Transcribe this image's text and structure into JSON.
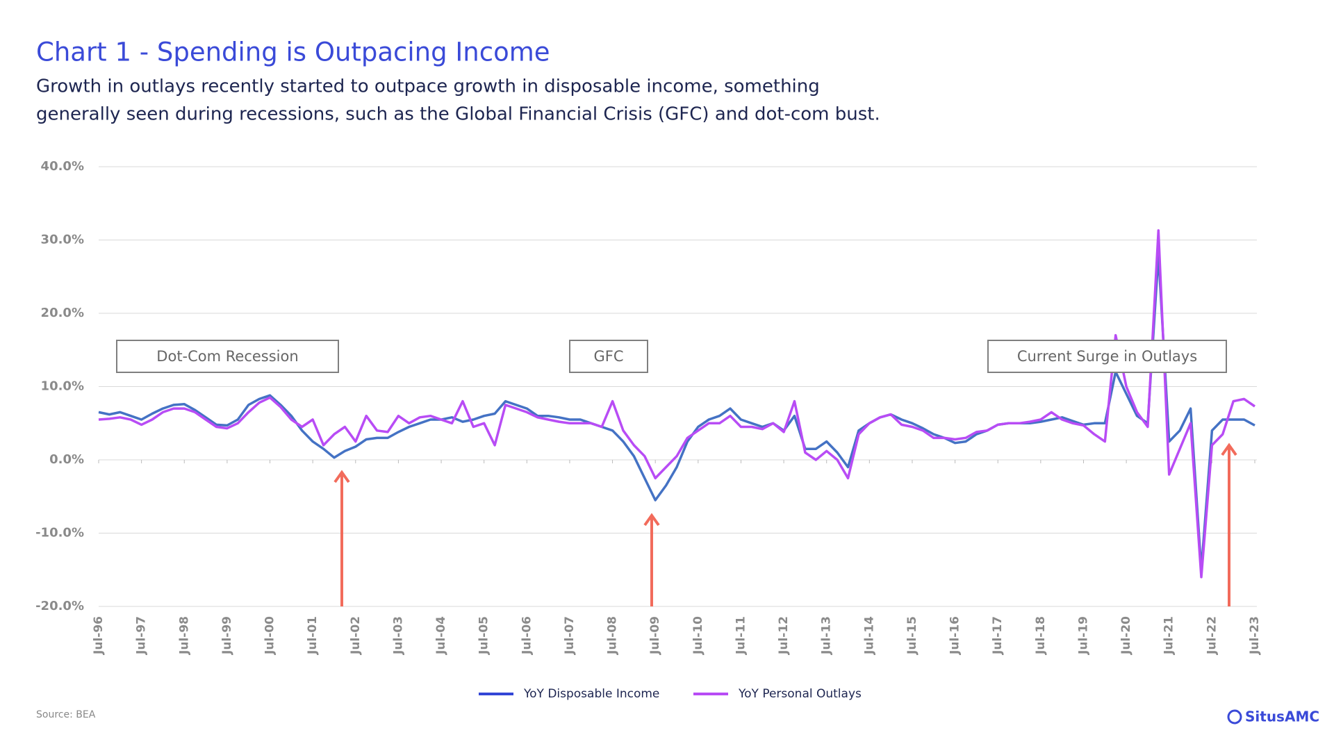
{
  "chart_data": {
    "type": "line",
    "title": "Chart 1 - Spending is Outpacing Income",
    "subtitle": [
      "Growth in outlays recently started to outpace growth in disposable income, something",
      "generally seen during recessions, such as the Global Financial Crisis (GFC) and dot-com bust."
    ],
    "annotations": [
      "Dot-Com Recession",
      "GFC",
      "Current Surge in Outlays"
    ],
    "source": "Source: BEA",
    "brand": "SitusAMC",
    "categories": [
      "Jul-96",
      null,
      null,
      null,
      "Jul-97",
      null,
      null,
      null,
      "Jul-98",
      null,
      null,
      null,
      "Jul-99",
      null,
      null,
      null,
      "Jul-00",
      null,
      null,
      null,
      "Jul-01",
      null,
      null,
      null,
      "Jul-02",
      null,
      null,
      null,
      "Jul-03",
      null,
      null,
      null,
      "Jul-04",
      null,
      null,
      null,
      "Jul-05",
      null,
      null,
      null,
      "Jul-06",
      null,
      null,
      null,
      "Jul-07",
      null,
      null,
      null,
      "Jul-08",
      null,
      null,
      null,
      "Jul-09",
      null,
      null,
      null,
      "Jul-10",
      null,
      null,
      null,
      "Jul-11",
      null,
      null,
      null,
      "Jul-12",
      null,
      null,
      null,
      "Jul-13",
      null,
      null,
      null,
      "Jul-14",
      null,
      null,
      null,
      "Jul-15",
      null,
      null,
      null,
      "Jul-16",
      null,
      null,
      null,
      "Jul-17",
      null,
      null,
      null,
      "Jul-18",
      null,
      null,
      null,
      "Jul-19",
      null,
      null,
      null,
      "Jul-20",
      null,
      null,
      null,
      "Jul-21",
      null,
      null,
      null,
      "Jul-22",
      null,
      null,
      null,
      "Jul-23"
    ],
    "series": [
      {
        "name": "YoY Disposable Income",
        "color": "#4472c4",
        "legend_color": "#3346d6",
        "values": [
          6.5,
          6.2,
          6.5,
          6.0,
          5.5,
          6.3,
          7.0,
          7.5,
          7.6,
          6.8,
          5.8,
          4.8,
          4.7,
          5.5,
          7.5,
          8.3,
          8.8,
          7.5,
          6.0,
          4.0,
          2.5,
          1.5,
          0.3,
          1.2,
          1.8,
          2.8,
          3.0,
          3.0,
          3.8,
          4.5,
          5.0,
          5.5,
          5.5,
          5.8,
          5.2,
          5.5,
          6.0,
          6.3,
          8.0,
          7.5,
          7.0,
          6.0,
          6.0,
          5.8,
          5.5,
          5.5,
          5.0,
          4.5,
          4.0,
          2.5,
          0.5,
          -2.5,
          -5.5,
          -3.5,
          -1.0,
          2.5,
          4.5,
          5.5,
          6.0,
          7.0,
          5.5,
          5.0,
          4.5,
          5.0,
          4.0,
          6.0,
          1.5,
          1.5,
          2.5,
          1.0,
          -1.0,
          4.0,
          5.0,
          5.8,
          6.2,
          5.5,
          5.0,
          4.3,
          3.5,
          3.0,
          2.3,
          2.5,
          3.5,
          4.0,
          4.8,
          5.0,
          5.0,
          5.0,
          5.2,
          5.5,
          5.8,
          5.3,
          4.8,
          5.0,
          5.0,
          12.0,
          9.0,
          6.0,
          5.0,
          28.0,
          2.5,
          4.0,
          7.0,
          -15.0,
          4.0,
          5.5,
          5.5,
          5.5,
          4.7
        ]
      },
      {
        "name": "YoY Personal Outlays",
        "color": "#b84cf5",
        "legend_color": "#b84cf5",
        "values": [
          5.5,
          5.6,
          5.8,
          5.5,
          4.8,
          5.5,
          6.5,
          7.0,
          7.0,
          6.5,
          5.5,
          4.5,
          4.3,
          5.0,
          6.5,
          7.8,
          8.5,
          7.2,
          5.5,
          4.5,
          5.5,
          2.0,
          3.5,
          4.5,
          2.5,
          6.0,
          4.0,
          3.8,
          6.0,
          5.0,
          5.8,
          6.0,
          5.5,
          5.0,
          8.0,
          4.5,
          5.0,
          2.0,
          7.5,
          7.0,
          6.5,
          5.8,
          5.5,
          5.2,
          5.0,
          5.0,
          5.0,
          4.5,
          8.0,
          4.0,
          2.0,
          0.5,
          -2.5,
          -1.0,
          0.5,
          3.0,
          4.0,
          5.0,
          5.0,
          6.0,
          4.5,
          4.5,
          4.2,
          5.0,
          3.8,
          8.0,
          1.0,
          0.0,
          1.2,
          0.0,
          -2.5,
          3.5,
          5.0,
          5.8,
          6.2,
          4.8,
          4.5,
          4.0,
          3.0,
          3.0,
          2.8,
          3.0,
          3.8,
          4.0,
          4.8,
          5.0,
          5.0,
          5.2,
          5.5,
          6.5,
          5.5,
          5.0,
          4.7,
          3.5,
          2.5,
          17.0,
          10.0,
          6.5,
          4.5,
          31.3,
          -2.0,
          1.5,
          5.0,
          -16.0,
          2.0,
          3.5,
          8.0,
          8.3,
          7.3
        ]
      }
    ],
    "ylim": [
      -20,
      40
    ],
    "yticks": [
      {
        "value": -20,
        "label": "-20.0%"
      },
      {
        "value": -10,
        "label": "-10.0%"
      },
      {
        "value": 0,
        "label": "0.0%"
      },
      {
        "value": 10,
        "label": "10.0%"
      },
      {
        "value": 20,
        "label": "20.0%"
      },
      {
        "value": 30,
        "label": "30.0%"
      },
      {
        "value": 40,
        "label": "40.0%"
      }
    ],
    "grid": true
  }
}
